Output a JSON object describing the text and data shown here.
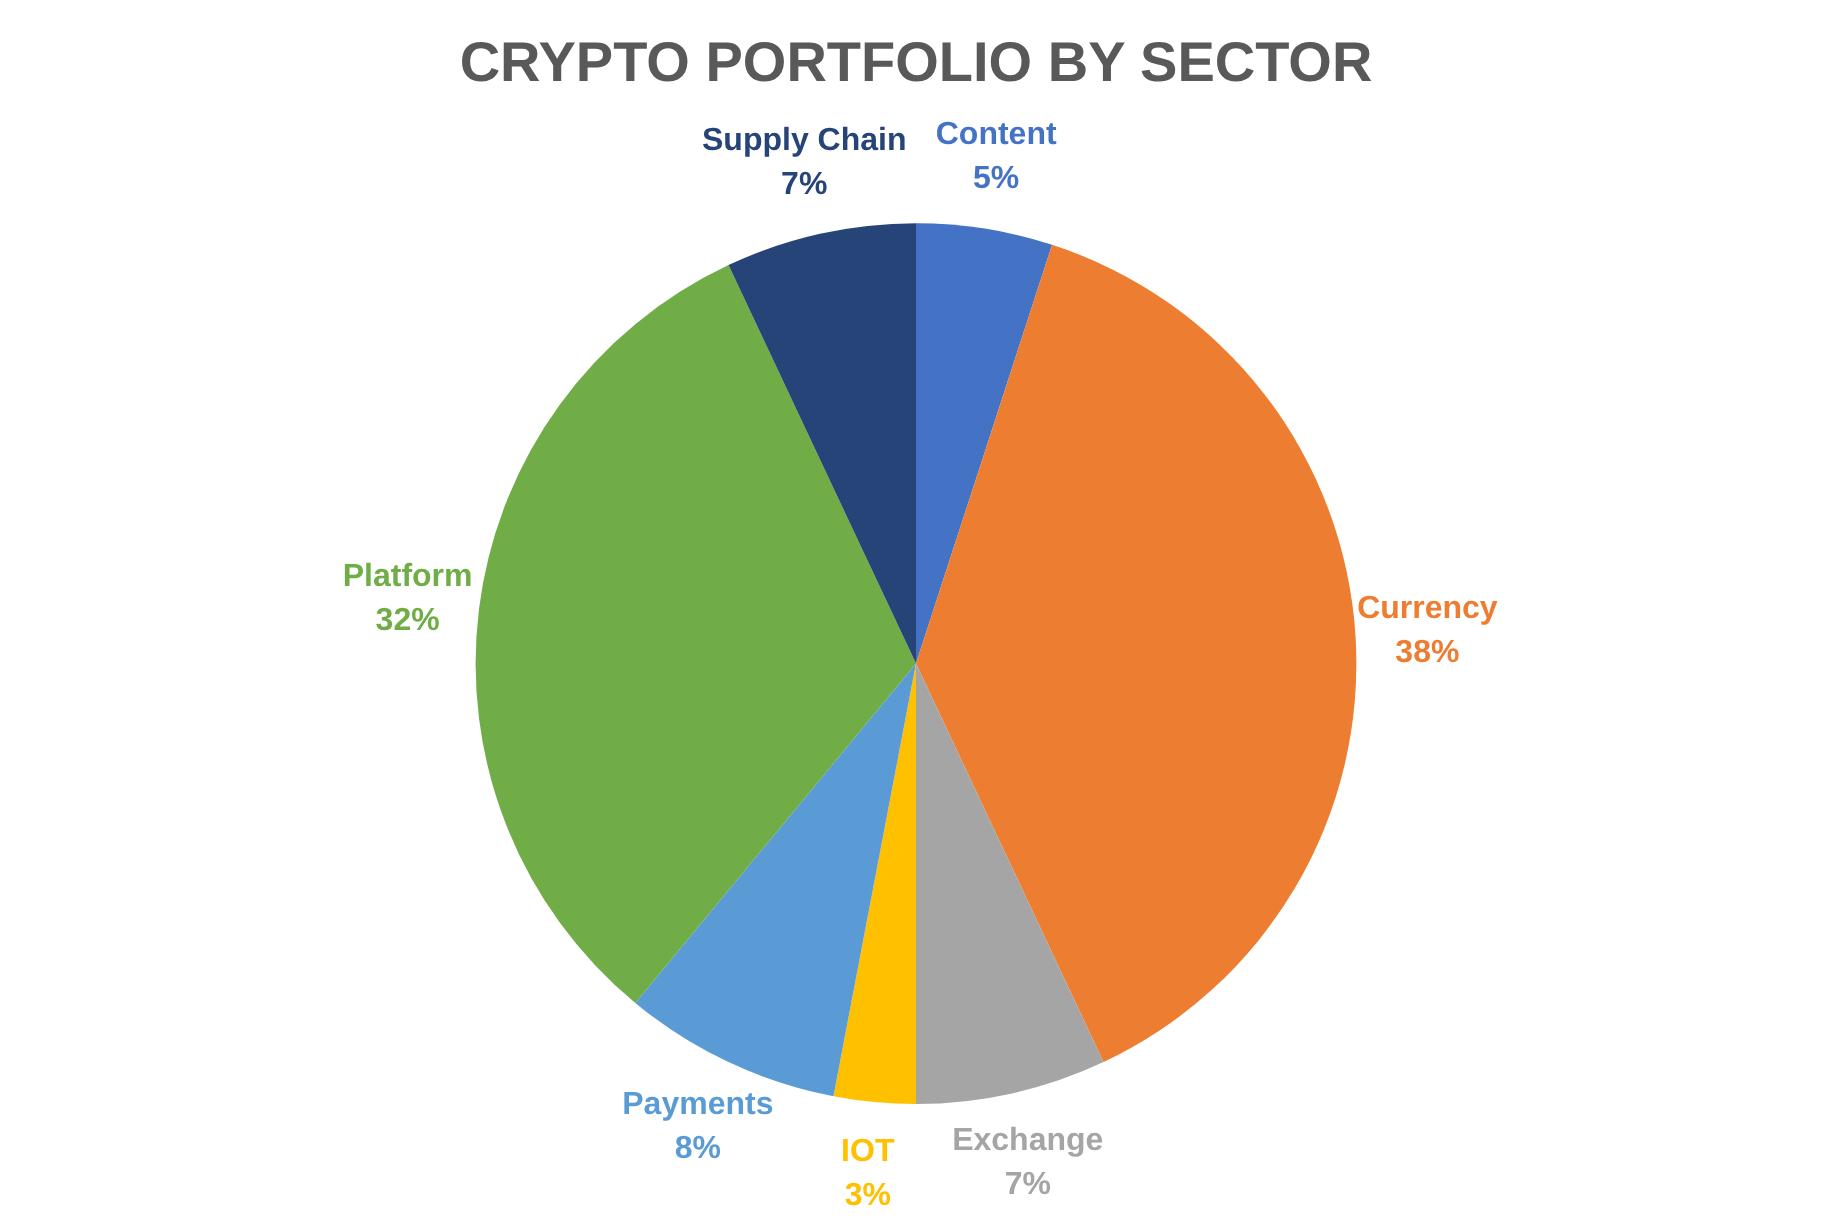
{
  "chart_data": {
    "type": "pie",
    "title": "CRYPTO PORTFOLIO BY SECTOR",
    "categories": [
      "Content",
      "Currency",
      "Exchange",
      "IOT",
      "Payments",
      "Platform",
      "Supply Chain"
    ],
    "values": [
      5,
      38,
      7,
      3,
      8,
      32,
      7
    ],
    "value_labels": [
      "5%",
      "38%",
      "7%",
      "3%",
      "8%",
      "32%",
      "7%"
    ],
    "colors": [
      "#4472c4",
      "#ed7d31",
      "#a5a5a5",
      "#ffc000",
      "#5b9bd5",
      "#70ad47",
      "#264478"
    ],
    "legend": false
  }
}
